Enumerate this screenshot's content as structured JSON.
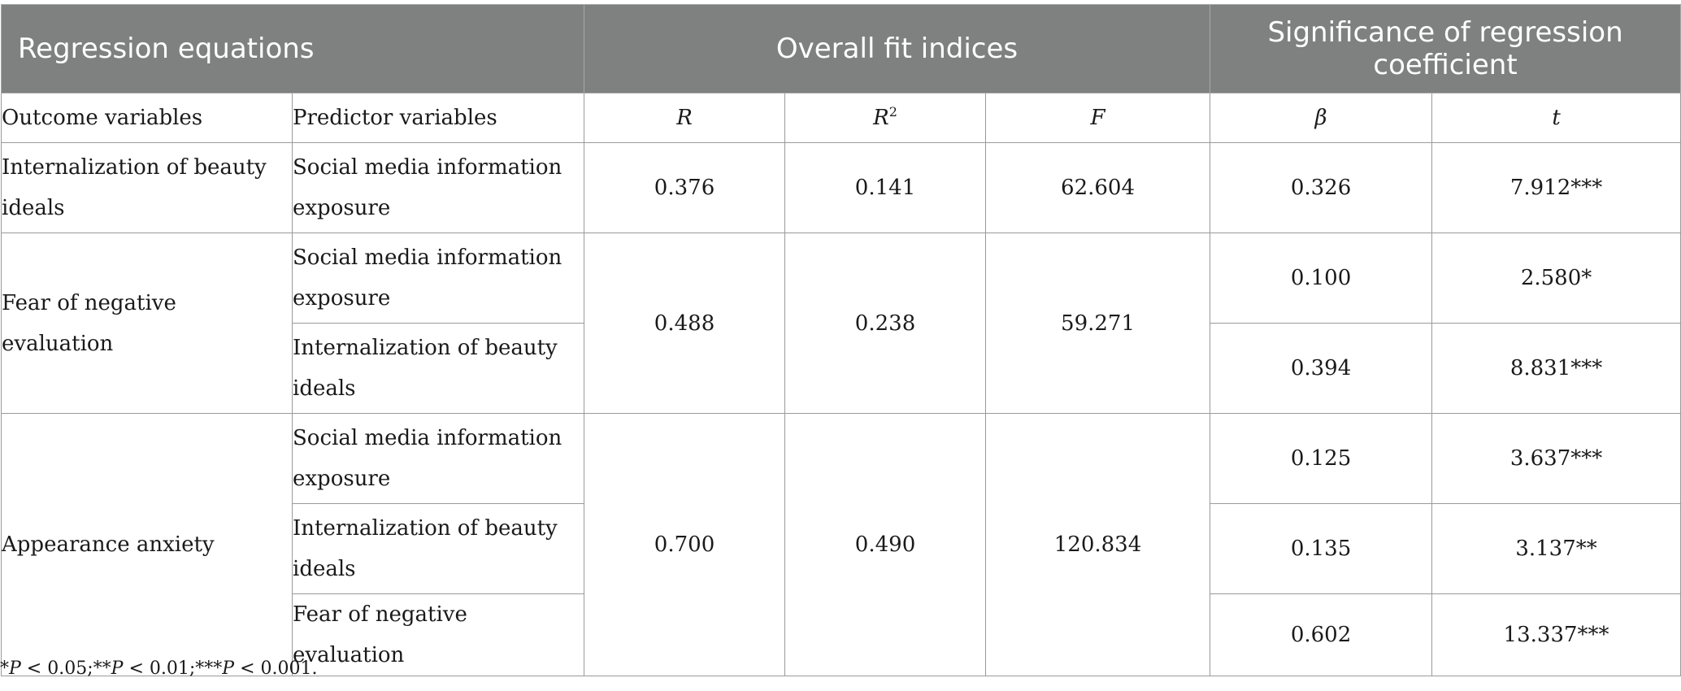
{
  "header": {
    "regression_equations": "Regression equations",
    "overall_fit": "Overall fit indices",
    "significance": "Significance of regression coefficient"
  },
  "subheader": {
    "outcome": "Outcome variables",
    "predictor": "Predictor variables",
    "r": "R",
    "r2_base": "R",
    "r2_sup": "2",
    "f": "F",
    "beta": "β",
    "t": "t"
  },
  "groups": [
    {
      "outcome": "Internalization of beauty ideals",
      "r": "0.376",
      "r2": "0.141",
      "f": "62.604",
      "rows": [
        {
          "predictor": "Social media information exposure",
          "beta": "0.326",
          "t": "7.912***"
        }
      ]
    },
    {
      "outcome": "Fear of negative evaluation",
      "r": "0.488",
      "r2": "0.238",
      "f": "59.271",
      "rows": [
        {
          "predictor": "Social media information exposure",
          "beta": "0.100",
          "t": "2.580*"
        },
        {
          "predictor": "Internalization of beauty ideals",
          "beta": "0.394",
          "t": "8.831***"
        }
      ]
    },
    {
      "outcome": "Appearance anxiety",
      "r": "0.700",
      "r2": "0.490",
      "f": "120.834",
      "rows": [
        {
          "predictor": "Social media information exposure",
          "beta": "0.125",
          "t": "3.637***"
        },
        {
          "predictor": "Internalization of beauty ideals",
          "beta": "0.135",
          "t": "3.137**"
        },
        {
          "predictor": "Fear of negative evaluation",
          "beta": "0.602",
          "t": "13.337***"
        }
      ]
    }
  ],
  "footnote": {
    "p1_sym": "*",
    "p1_var": "P",
    "p1_val": " < 0.05;",
    "p2_sym": "**",
    "p2_var": "P",
    "p2_val": " < 0.01;",
    "p3_sym": "***",
    "p3_var": "P",
    "p3_val": " < 0.001."
  }
}
